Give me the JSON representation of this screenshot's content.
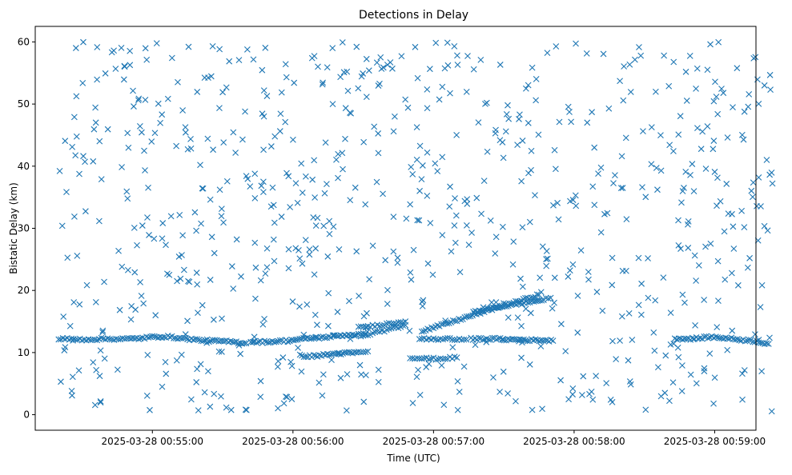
{
  "chart_data": {
    "type": "scatter",
    "title": "Detections in Delay",
    "xlabel": "Time (UTC)",
    "ylabel": "Bistatic Delay (km)",
    "x_unit": "seconds_after_2025-03-28 00:54:00",
    "xlim": [
      10,
      333
    ],
    "ylim": [
      -2.5,
      62.5
    ],
    "x_ticks": [
      {
        "value": 60,
        "label": "2025-03-28 00:55:00"
      },
      {
        "value": 120,
        "label": "2025-03-28 00:56:00"
      },
      {
        "value": 180,
        "label": "2025-03-28 00:57:00"
      },
      {
        "value": 240,
        "label": "2025-03-28 00:58:00"
      },
      {
        "value": 300,
        "label": "2025-03-28 00:59:00"
      }
    ],
    "y_ticks": [
      0,
      10,
      20,
      30,
      40,
      50,
      60
    ],
    "marker": "x",
    "color": "#1f77b4",
    "grid": false,
    "noise_detections": {
      "description": "approximately uniformly distributed clutter detections between 0 and 60 km across the full time span",
      "count": 780,
      "x_range": [
        20,
        325
      ],
      "y_range": [
        0.5,
        60
      ]
    },
    "tracks": [
      {
        "x": [
          20,
          30,
          40,
          50,
          55,
          60,
          65,
          70,
          75,
          80,
          85,
          90,
          95,
          100,
          100
        ],
        "y": [
          12.2,
          12.1,
          12.2,
          12.2,
          12.3,
          12.5,
          12.6,
          12.4,
          12.2,
          12.0,
          11.9,
          11.8,
          11.7,
          11.5,
          11.5
        ]
      },
      {
        "x": [
          102,
          107,
          112,
          117,
          122,
          127,
          132,
          137,
          142,
          147,
          151
        ],
        "y": [
          11.8,
          11.7,
          11.8,
          11.9,
          12.1,
          12.3,
          12.4,
          12.6,
          12.8,
          12.9,
          13.0
        ]
      },
      {
        "x": [
          123,
          128,
          133,
          138,
          143,
          148,
          152
        ],
        "y": [
          9.5,
          9.4,
          9.6,
          9.8,
          9.9,
          10.0,
          10.2
        ]
      },
      {
        "x": [
          149,
          153,
          157,
          161,
          165,
          168
        ],
        "y": [
          12.5,
          13.0,
          13.4,
          13.7,
          14.1,
          14.4
        ]
      },
      {
        "x": [
          148,
          152,
          156,
          160,
          164,
          168
        ],
        "y": [
          14.0,
          14.2,
          14.4,
          14.6,
          14.8,
          15.0
        ]
      },
      {
        "x": [
          170,
          174,
          178,
          182,
          186,
          190
        ],
        "y": [
          9.2,
          9.1,
          9.0,
          9.0,
          9.1,
          9.2
        ]
      },
      {
        "x": [
          174,
          178,
          182,
          186,
          190,
          194
        ],
        "y": [
          12.2,
          12.2,
          12.1,
          12.2,
          12.2,
          12.1
        ]
      },
      {
        "x": [
          175,
          180,
          185,
          190,
          195,
          200,
          205,
          210,
          215,
          220,
          225
        ],
        "y": [
          13.5,
          14.0,
          14.6,
          15.2,
          15.8,
          16.4,
          17.0,
          17.6,
          18.1,
          18.7,
          19.3
        ]
      },
      {
        "x": [
          197,
          202,
          207,
          212,
          217,
          222,
          227,
          230
        ],
        "y": [
          16.5,
          16.9,
          17.3,
          17.6,
          17.9,
          18.2,
          18.5,
          18.8
        ]
      },
      {
        "x": [
          196,
          201,
          206,
          211,
          216,
          221,
          226,
          231
        ],
        "y": [
          12.2,
          12.2,
          12.2,
          12.1,
          12.1,
          12.0,
          12.0,
          11.9
        ]
      },
      {
        "x": [
          283,
          288,
          293,
          298,
          303,
          308,
          313,
          318,
          323
        ],
        "y": [
          12.3,
          12.2,
          12.3,
          12.5,
          12.4,
          12.2,
          12.0,
          11.8,
          11.4
        ]
      }
    ]
  }
}
